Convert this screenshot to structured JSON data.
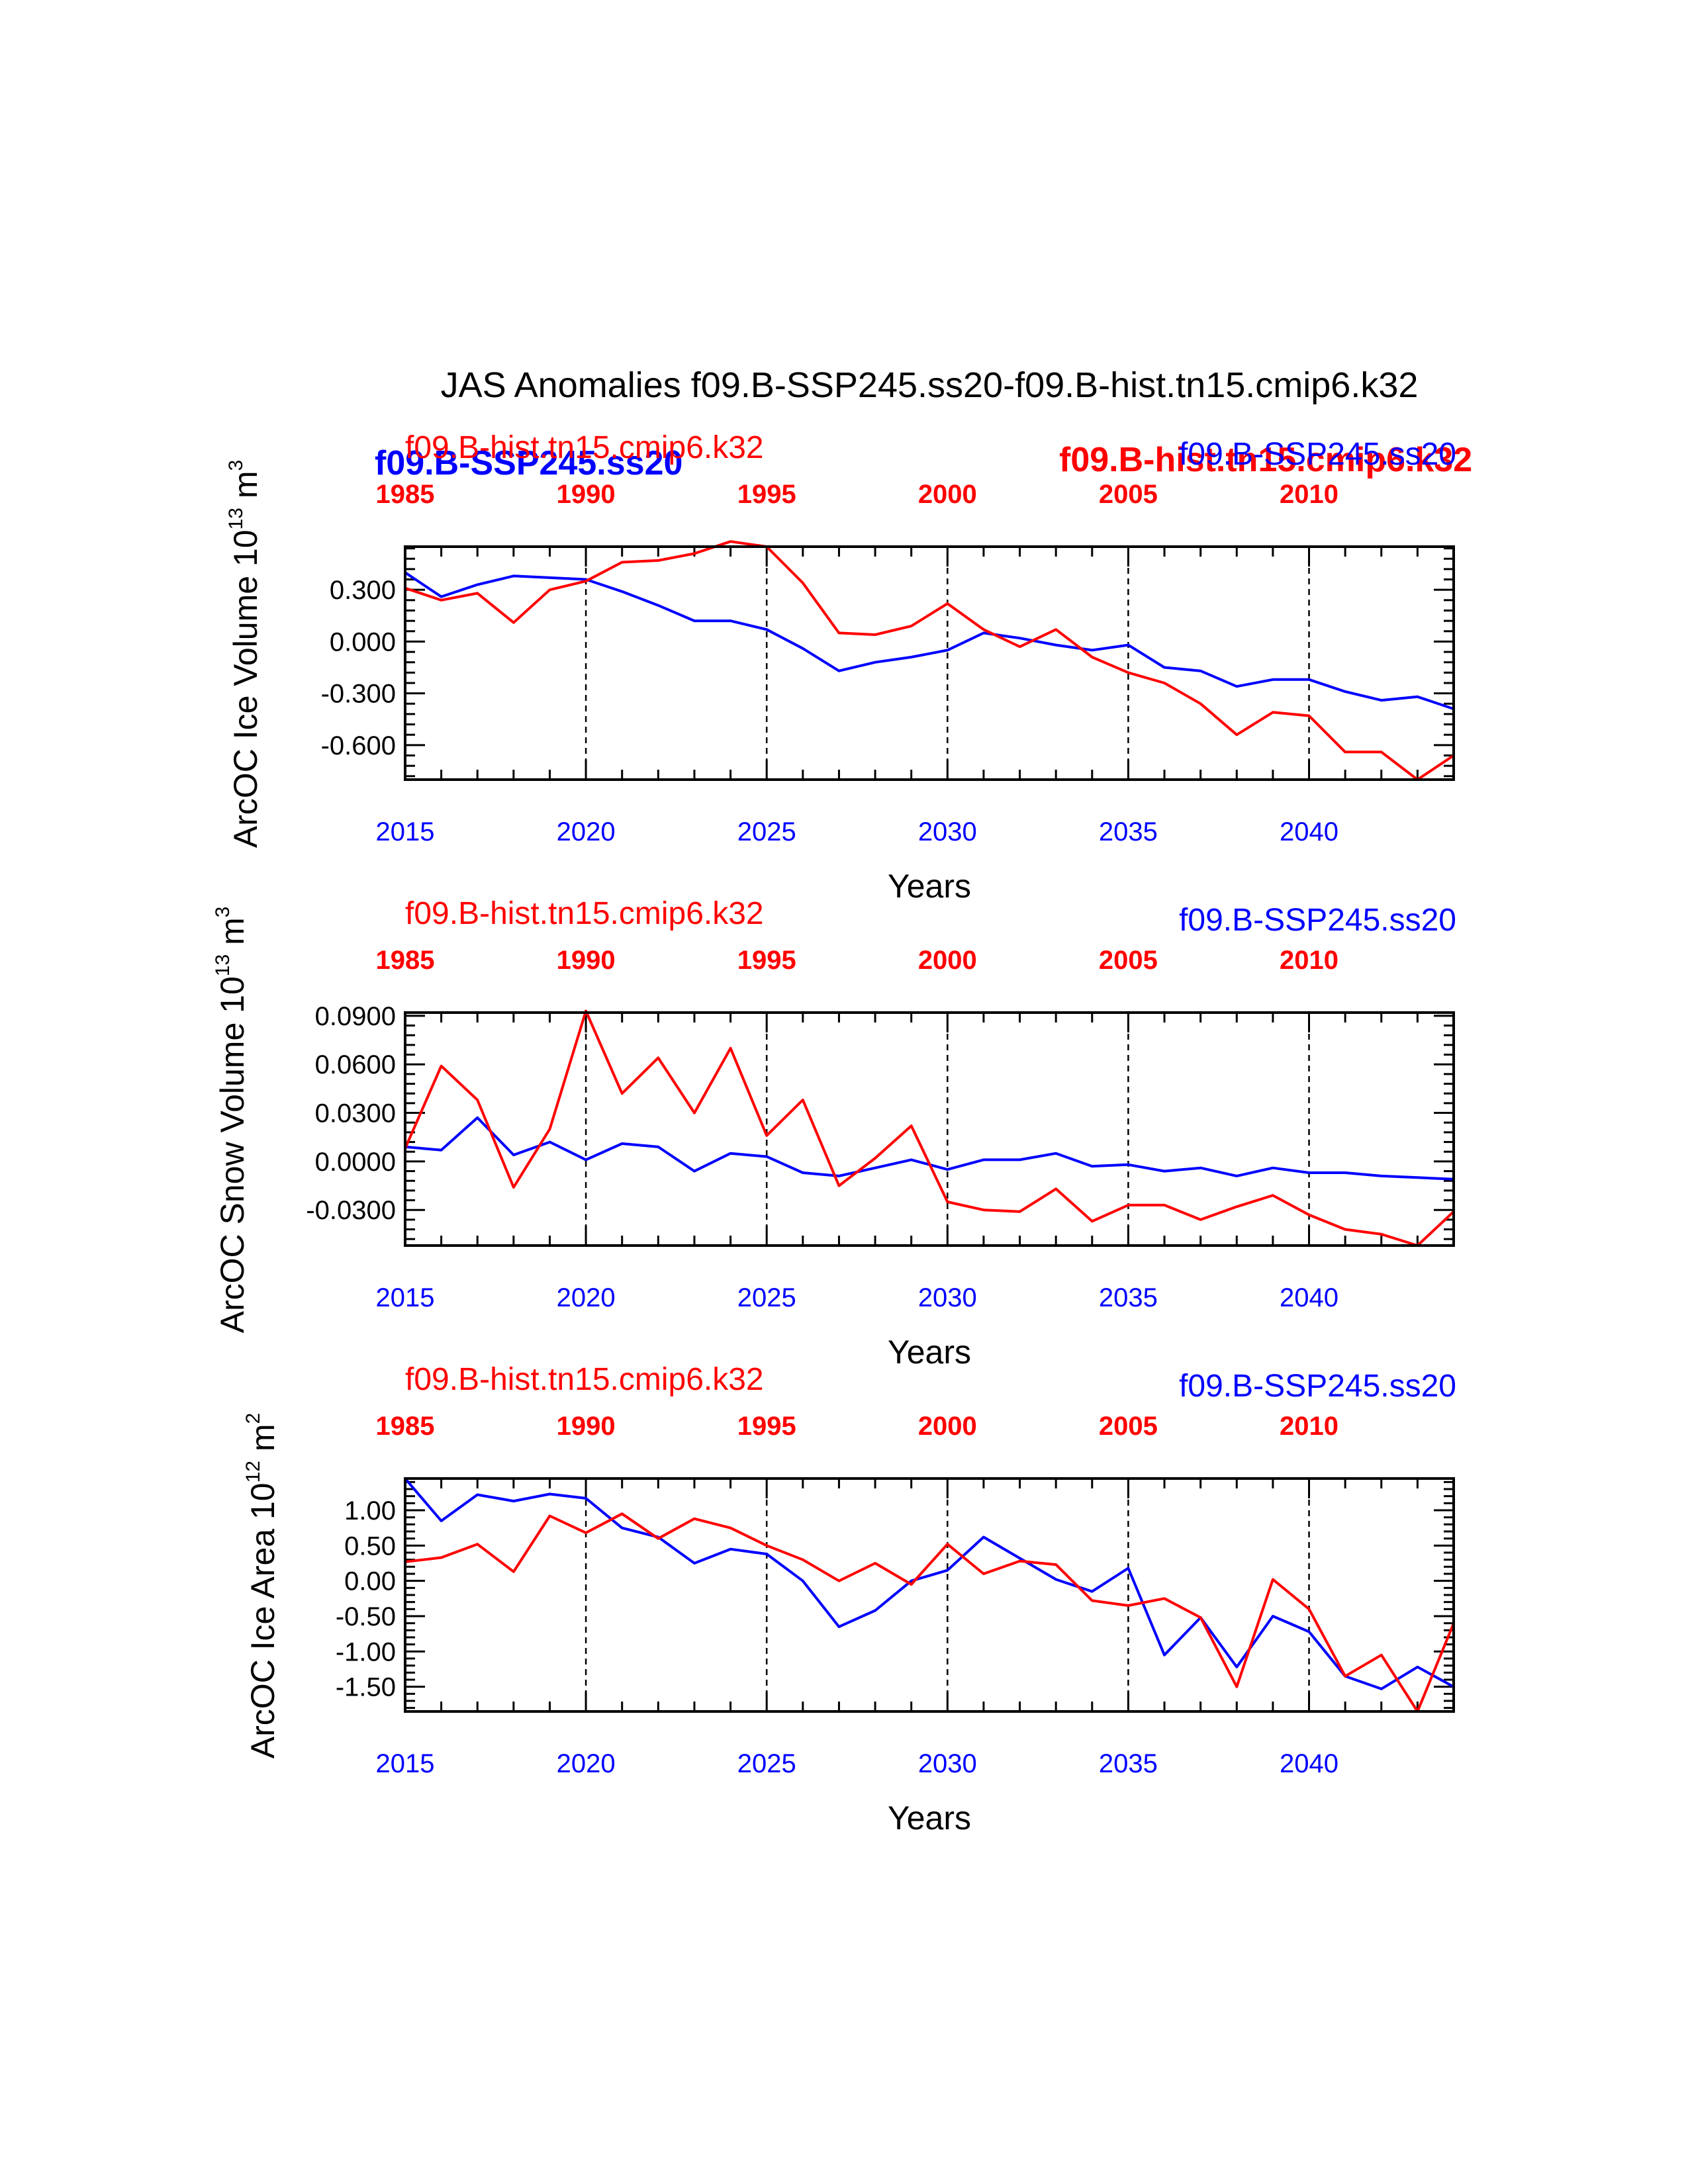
{
  "figure_title": "JAS Anomalies f09.B-SSP245.ss20-f09.B-hist.tn15.cmip6.k32",
  "colors": {
    "ssp": "#0000ff",
    "hist": "#ff0000",
    "axis": "#000000"
  },
  "overlay_labels": {
    "ssp_bold": "f09.B-SSP245.ss20",
    "hist_bold": "f09.B-hist.tn15.cmip6.k32"
  },
  "chart_data": [
    {
      "type": "line",
      "ylabel_main": "ArcOC Ice Volume 10",
      "ylabel_exp": "13",
      "ylabel_unit": " m",
      "ylabel_unit_exp": "3",
      "xlabel": "Years",
      "ylim": [
        -0.8,
        0.55
      ],
      "yticks": [
        0.3,
        0.0,
        -0.3,
        -0.6
      ],
      "ytick_labels": [
        "0.300",
        "0.000",
        "-0.300",
        "-0.600"
      ],
      "bottom_axis": {
        "label_color": "blue",
        "ticks": [
          2015,
          2020,
          2025,
          2030,
          2035,
          2040
        ],
        "labels": [
          "2015",
          "2020",
          "2025",
          "2030",
          "2035",
          "2040"
        ]
      },
      "top_axis": {
        "label_color": "red",
        "bold": true,
        "ticks": [
          1985,
          1990,
          1995,
          2000,
          2005,
          2010
        ],
        "labels": [
          "1985",
          "1990",
          "1995",
          "2000",
          "2005",
          "2010"
        ]
      },
      "series": [
        {
          "name": "f09.B-SSP245.ss20",
          "color": "blue",
          "x": [
            2015,
            2016,
            2017,
            2018,
            2019,
            2020,
            2021,
            2022,
            2023,
            2024,
            2025,
            2026,
            2027,
            2028,
            2029,
            2030,
            2031,
            2032,
            2033,
            2034,
            2035,
            2036,
            2037,
            2038,
            2039,
            2040,
            2041,
            2042,
            2043,
            2044
          ],
          "y": [
            0.4,
            0.26,
            0.33,
            0.38,
            0.37,
            0.36,
            0.29,
            0.21,
            0.12,
            0.12,
            0.07,
            -0.04,
            -0.17,
            -0.12,
            -0.09,
            -0.05,
            0.05,
            0.02,
            -0.02,
            -0.05,
            -0.02,
            -0.15,
            -0.17,
            -0.26,
            -0.22,
            -0.22,
            -0.29,
            -0.34,
            -0.32,
            -0.39
          ]
        },
        {
          "name": "f09.B-hist.tn15.cmip6.k32",
          "color": "red",
          "x": [
            1985,
            1986,
            1987,
            1988,
            1989,
            1990,
            1991,
            1992,
            1993,
            1994,
            1995,
            1996,
            1997,
            1998,
            1999,
            2000,
            2001,
            2002,
            2003,
            2004,
            2005,
            2006,
            2007,
            2008,
            2009,
            2010,
            2011,
            2012,
            2013,
            2014
          ],
          "y": [
            0.31,
            0.24,
            0.28,
            0.11,
            0.3,
            0.35,
            0.46,
            0.47,
            0.51,
            0.58,
            0.55,
            0.34,
            0.05,
            0.04,
            0.09,
            0.22,
            0.07,
            -0.03,
            0.07,
            -0.09,
            -0.18,
            -0.24,
            -0.36,
            -0.54,
            -0.41,
            -0.43,
            -0.64,
            -0.64,
            -0.8,
            -0.66
          ]
        }
      ]
    },
    {
      "type": "line",
      "ylabel_main": "ArcOC Snow Volume 10",
      "ylabel_exp": "13",
      "ylabel_unit": " m",
      "ylabel_unit_exp": "3",
      "xlabel": "Years",
      "ylim": [
        -0.052,
        0.092
      ],
      "yticks": [
        0.09,
        0.06,
        0.03,
        0.0,
        -0.03
      ],
      "ytick_labels": [
        "0.0900",
        "0.0600",
        "0.0300",
        "0.0000",
        "-0.0300"
      ],
      "legend_left": "f09.B-hist.tn15.cmip6.k32",
      "legend_right": "f09.B-SSP245.ss20",
      "bottom_axis": {
        "label_color": "blue",
        "ticks": [
          2015,
          2020,
          2025,
          2030,
          2035,
          2040
        ],
        "labels": [
          "2015",
          "2020",
          "2025",
          "2030",
          "2035",
          "2040"
        ]
      },
      "top_axis": {
        "label_color": "red",
        "bold": true,
        "ticks": [
          1985,
          1990,
          1995,
          2000,
          2005,
          2010
        ],
        "labels": [
          "1985",
          "1990",
          "1995",
          "2000",
          "2005",
          "2010"
        ]
      },
      "series": [
        {
          "name": "f09.B-SSP245.ss20",
          "color": "blue",
          "x": [
            2015,
            2016,
            2017,
            2018,
            2019,
            2020,
            2021,
            2022,
            2023,
            2024,
            2025,
            2026,
            2027,
            2028,
            2029,
            2030,
            2031,
            2032,
            2033,
            2034,
            2035,
            2036,
            2037,
            2038,
            2039,
            2040,
            2041,
            2042,
            2043,
            2044
          ],
          "y": [
            0.009,
            0.007,
            0.027,
            0.004,
            0.012,
            0.001,
            0.011,
            0.009,
            -0.006,
            0.005,
            0.003,
            -0.007,
            -0.009,
            -0.004,
            0.001,
            -0.005,
            0.001,
            0.001,
            0.005,
            -0.003,
            -0.002,
            -0.006,
            -0.004,
            -0.009,
            -0.004,
            -0.007,
            -0.007,
            -0.009,
            -0.01,
            -0.011
          ]
        },
        {
          "name": "f09.B-hist.tn15.cmip6.k32",
          "color": "red",
          "x": [
            1985,
            1986,
            1987,
            1988,
            1989,
            1990,
            1991,
            1992,
            1993,
            1994,
            1995,
            1996,
            1997,
            1998,
            1999,
            2000,
            2001,
            2002,
            2003,
            2004,
            2005,
            2006,
            2007,
            2008,
            2009,
            2010,
            2011,
            2012,
            2013,
            2014
          ],
          "y": [
            0.008,
            0.059,
            0.038,
            -0.016,
            0.02,
            0.093,
            0.042,
            0.064,
            0.03,
            0.07,
            0.016,
            0.038,
            -0.015,
            0.002,
            0.022,
            -0.025,
            -0.03,
            -0.031,
            -0.017,
            -0.037,
            -0.027,
            -0.027,
            -0.036,
            -0.028,
            -0.021,
            -0.033,
            -0.042,
            -0.045,
            -0.052,
            -0.031
          ]
        }
      ]
    },
    {
      "type": "line",
      "ylabel_main": "ArcOC Ice Area 10",
      "ylabel_exp": "12",
      "ylabel_unit": " m",
      "ylabel_unit_exp": "2",
      "xlabel": "Years",
      "ylim": [
        -1.85,
        1.45
      ],
      "yticks": [
        1.0,
        0.5,
        0.0,
        -0.5,
        -1.0,
        -1.5
      ],
      "ytick_labels": [
        "1.00",
        "0.50",
        "0.00",
        "-0.50",
        "-1.00",
        "-1.50"
      ],
      "legend_left": "f09.B-hist.tn15.cmip6.k32",
      "legend_right": "f09.B-SSP245.ss20",
      "bottom_axis": {
        "label_color": "blue",
        "ticks": [
          2015,
          2020,
          2025,
          2030,
          2035,
          2040
        ],
        "labels": [
          "2015",
          "2020",
          "2025",
          "2030",
          "2035",
          "2040"
        ]
      },
      "top_axis": {
        "label_color": "red",
        "bold": true,
        "ticks": [
          1985,
          1990,
          1995,
          2000,
          2005,
          2010
        ],
        "labels": [
          "1985",
          "1990",
          "1995",
          "2000",
          "2005",
          "2010"
        ]
      },
      "series": [
        {
          "name": "f09.B-SSP245.ss20",
          "color": "blue",
          "x": [
            2015,
            2016,
            2017,
            2018,
            2019,
            2020,
            2021,
            2022,
            2023,
            2024,
            2025,
            2026,
            2027,
            2028,
            2029,
            2030,
            2031,
            2032,
            2033,
            2034,
            2035,
            2036,
            2037,
            2038,
            2039,
            2040,
            2041,
            2042,
            2043,
            2044
          ],
          "y": [
            1.45,
            0.85,
            1.22,
            1.13,
            1.23,
            1.17,
            0.75,
            0.62,
            0.25,
            0.45,
            0.38,
            0.0,
            -0.65,
            -0.42,
            0.0,
            0.15,
            0.62,
            0.32,
            0.02,
            -0.15,
            0.18,
            -1.05,
            -0.52,
            -1.22,
            -0.5,
            -0.72,
            -1.35,
            -1.53,
            -1.22,
            -1.5
          ]
        },
        {
          "name": "f09.B-hist.tn15.cmip6.k32",
          "color": "red",
          "x": [
            1985,
            1986,
            1987,
            1988,
            1989,
            1990,
            1991,
            1992,
            1993,
            1994,
            1995,
            1996,
            1997,
            1998,
            1999,
            2000,
            2001,
            2002,
            2003,
            2004,
            2005,
            2006,
            2007,
            2008,
            2009,
            2010,
            2011,
            2012,
            2013,
            2014
          ],
          "y": [
            0.27,
            0.33,
            0.52,
            0.13,
            0.92,
            0.68,
            0.95,
            0.6,
            0.88,
            0.75,
            0.5,
            0.3,
            0.0,
            0.25,
            -0.05,
            0.52,
            0.1,
            0.28,
            0.23,
            -0.28,
            -0.35,
            -0.25,
            -0.52,
            -1.5,
            0.02,
            -0.4,
            -1.35,
            -1.05,
            -1.85,
            -0.6
          ]
        }
      ]
    }
  ]
}
